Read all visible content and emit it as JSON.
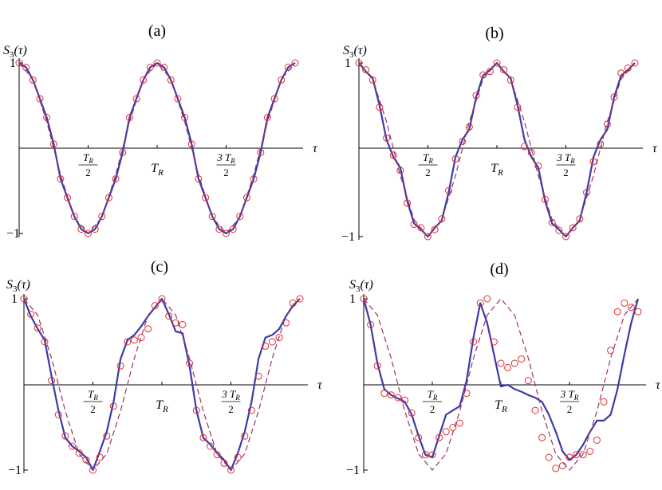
{
  "figure": {
    "x_axis_label": "τ",
    "y_axis_label": "S3(τ)",
    "y_tick_top": "1",
    "y_tick_bottom": "−1",
    "x_ticks": [
      {
        "num": "T",
        "sub": "R",
        "den": "2",
        "kind": "frac",
        "value": 0.5
      },
      {
        "label": "T",
        "sub": "R",
        "kind": "plain",
        "value": 1.0
      },
      {
        "num": "3 T",
        "sub": "R",
        "den": "2",
        "kind": "frac",
        "value": 1.5
      }
    ],
    "colors": {
      "solid": "#3b3ba8",
      "circles": "#e03030",
      "dashed": "#a0306a",
      "axis": "#000000"
    }
  },
  "chart_data": [
    {
      "title": "(a)",
      "type": "line",
      "xlim": [
        0,
        2
      ],
      "ylim": [
        -1,
        1
      ],
      "xlabel": "τ",
      "ylabel": "S3(τ)",
      "series": [
        {
          "kind": "solid",
          "x": [
            0,
            0.05,
            0.1,
            0.15,
            0.2,
            0.25,
            0.3,
            0.35,
            0.4,
            0.45,
            0.5,
            0.55,
            0.6,
            0.65,
            0.7,
            0.75,
            0.8,
            0.85,
            0.9,
            0.95,
            1.0,
            1.05,
            1.1,
            1.15,
            1.2,
            1.25,
            1.3,
            1.35,
            1.4,
            1.45,
            1.5,
            1.55,
            1.6,
            1.65,
            1.7,
            1.75,
            1.8,
            1.85,
            1.9,
            1.95,
            2.0
          ],
          "y": [
            1,
            0.95,
            0.8,
            0.58,
            0.36,
            0.05,
            -0.36,
            -0.58,
            -0.8,
            -0.95,
            -1,
            -0.95,
            -0.8,
            -0.58,
            -0.36,
            -0.05,
            0.36,
            0.58,
            0.8,
            0.95,
            1,
            0.95,
            0.8,
            0.58,
            0.36,
            0.05,
            -0.36,
            -0.58,
            -0.8,
            -0.95,
            -1,
            -0.95,
            -0.8,
            -0.58,
            -0.36,
            -0.05,
            0.36,
            0.58,
            0.8,
            0.95,
            1
          ]
        },
        {
          "kind": "circles",
          "x": [
            0,
            0.05,
            0.1,
            0.15,
            0.2,
            0.25,
            0.3,
            0.35,
            0.4,
            0.45,
            0.5,
            0.55,
            0.6,
            0.65,
            0.7,
            0.75,
            0.8,
            0.85,
            0.9,
            0.95,
            1.0,
            1.05,
            1.1,
            1.15,
            1.2,
            1.25,
            1.3,
            1.35,
            1.4,
            1.45,
            1.5,
            1.55,
            1.6,
            1.65,
            1.7,
            1.75,
            1.8,
            1.85,
            1.9,
            1.95,
            2.0
          ],
          "y": [
            1,
            0.95,
            0.8,
            0.58,
            0.36,
            0.05,
            -0.36,
            -0.58,
            -0.8,
            -0.95,
            -1,
            -0.95,
            -0.8,
            -0.58,
            -0.36,
            -0.05,
            0.36,
            0.58,
            0.8,
            0.95,
            1,
            0.95,
            0.8,
            0.58,
            0.36,
            0.05,
            -0.36,
            -0.58,
            -0.8,
            -0.95,
            -1,
            -0.95,
            -0.8,
            -0.58,
            -0.36,
            -0.05,
            0.36,
            0.58,
            0.8,
            0.95,
            1
          ]
        },
        {
          "kind": "dashed",
          "x": [
            0,
            0.1,
            0.2,
            0.3,
            0.4,
            0.5,
            0.6,
            0.7,
            0.8,
            0.9,
            1.0,
            1.1,
            1.2,
            1.3,
            1.4,
            1.5,
            1.6,
            1.7,
            1.8,
            1.9,
            2.0
          ],
          "y": [
            1,
            0.81,
            0.31,
            -0.31,
            -0.81,
            -1,
            -0.81,
            -0.31,
            0.31,
            0.81,
            1,
            0.81,
            0.31,
            -0.31,
            -0.81,
            -1,
            -0.81,
            -0.31,
            0.31,
            0.81,
            1
          ]
        }
      ]
    },
    {
      "title": "(b)",
      "type": "line",
      "xlim": [
        0,
        2
      ],
      "ylim": [
        -1,
        1
      ],
      "xlabel": "τ",
      "ylabel": "S3(τ)",
      "series": [
        {
          "kind": "solid",
          "x": [
            0,
            0.05,
            0.1,
            0.15,
            0.2,
            0.25,
            0.3,
            0.35,
            0.4,
            0.45,
            0.5,
            0.55,
            0.6,
            0.65,
            0.7,
            0.75,
            0.8,
            0.85,
            0.9,
            0.95,
            1.0,
            1.05,
            1.1,
            1.15,
            1.2,
            1.25,
            1.3,
            1.35,
            1.4,
            1.45,
            1.5,
            1.55,
            1.6,
            1.65,
            1.7,
            1.75,
            1.8,
            1.85,
            1.9,
            1.95,
            2.0
          ],
          "y": [
            1,
            0.9,
            0.82,
            0.5,
            0.1,
            -0.1,
            -0.22,
            -0.6,
            -0.85,
            -0.92,
            -1,
            -0.9,
            -0.82,
            -0.5,
            -0.1,
            0.1,
            0.22,
            0.6,
            0.85,
            0.92,
            1,
            0.9,
            0.82,
            0.5,
            0.1,
            -0.1,
            -0.22,
            -0.6,
            -0.85,
            -0.92,
            -1,
            -0.9,
            -0.82,
            -0.5,
            -0.1,
            0.1,
            0.22,
            0.6,
            0.85,
            0.92,
            1
          ]
        },
        {
          "kind": "circles",
          "x": [
            0,
            0.05,
            0.1,
            0.15,
            0.2,
            0.25,
            0.3,
            0.35,
            0.4,
            0.45,
            0.5,
            0.55,
            0.6,
            0.65,
            0.7,
            0.75,
            0.8,
            0.85,
            0.9,
            0.95,
            1.0,
            1.05,
            1.1,
            1.15,
            1.2,
            1.25,
            1.3,
            1.35,
            1.4,
            1.45,
            1.5,
            1.55,
            1.6,
            1.65,
            1.7,
            1.75,
            1.8,
            1.85,
            1.9,
            1.95,
            2.0
          ],
          "y": [
            1,
            0.92,
            0.8,
            0.48,
            0.12,
            -0.08,
            -0.25,
            -0.62,
            -0.86,
            -0.9,
            -1,
            -0.92,
            -0.8,
            -0.48,
            -0.12,
            0.08,
            0.25,
            0.62,
            0.86,
            0.9,
            1,
            0.92,
            0.8,
            0.48,
            0.02,
            -0.05,
            -0.2,
            -0.58,
            -0.84,
            -0.93,
            -1,
            -0.9,
            -0.8,
            -0.5,
            -0.15,
            0.05,
            0.28,
            0.6,
            0.88,
            0.94,
            1
          ]
        },
        {
          "kind": "dashed",
          "x": [
            0,
            0.1,
            0.2,
            0.3,
            0.4,
            0.5,
            0.6,
            0.7,
            0.8,
            0.9,
            1.0,
            1.1,
            1.2,
            1.3,
            1.4,
            1.5,
            1.6,
            1.7,
            1.8,
            1.9,
            2.0
          ],
          "y": [
            1,
            0.81,
            0.31,
            -0.31,
            -0.81,
            -1,
            -0.81,
            -0.31,
            0.31,
            0.81,
            1,
            0.81,
            0.31,
            -0.31,
            -0.81,
            -1,
            -0.81,
            -0.31,
            0.31,
            0.81,
            1
          ]
        }
      ]
    },
    {
      "title": "(c)",
      "type": "line",
      "xlim": [
        0,
        2
      ],
      "ylim": [
        -1,
        1
      ],
      "xlabel": "τ",
      "ylabel": "S3(τ)",
      "series": [
        {
          "kind": "solid",
          "x": [
            0,
            0.05,
            0.1,
            0.15,
            0.2,
            0.25,
            0.3,
            0.35,
            0.4,
            0.45,
            0.5,
            0.55,
            0.6,
            0.65,
            0.7,
            0.75,
            0.8,
            0.85,
            0.9,
            0.95,
            1.0,
            1.05,
            1.1,
            1.15,
            1.2,
            1.25,
            1.3,
            1.35,
            1.4,
            1.45,
            1.5,
            1.55,
            1.6,
            1.65,
            1.7,
            1.75,
            1.8,
            1.85,
            1.9,
            1.95,
            2.0
          ],
          "y": [
            1,
            0.8,
            0.65,
            0.52,
            0.1,
            -0.3,
            -0.62,
            -0.72,
            -0.78,
            -0.85,
            -1,
            -0.78,
            -0.55,
            -0.2,
            0.3,
            0.52,
            0.58,
            0.68,
            0.8,
            0.9,
            1,
            0.82,
            0.62,
            0.6,
            0.22,
            -0.3,
            -0.62,
            -0.7,
            -0.8,
            -0.88,
            -1,
            -0.8,
            -0.55,
            -0.2,
            0.3,
            0.55,
            0.58,
            0.65,
            0.8,
            0.92,
            1
          ]
        },
        {
          "kind": "circles",
          "x": [
            0,
            0.05,
            0.1,
            0.15,
            0.2,
            0.25,
            0.3,
            0.35,
            0.4,
            0.45,
            0.5,
            0.55,
            0.6,
            0.65,
            0.7,
            0.75,
            0.8,
            0.85,
            0.9,
            0.95,
            1.0,
            1.05,
            1.1,
            1.15,
            1.2,
            1.25,
            1.3,
            1.35,
            1.4,
            1.45,
            1.5,
            1.55,
            1.6,
            1.65,
            1.7,
            1.75,
            1.8,
            1.85,
            1.9,
            1.95,
            2.0
          ],
          "y": [
            1,
            0.82,
            0.66,
            0.5,
            0.05,
            -0.35,
            -0.6,
            -0.72,
            -0.8,
            -0.88,
            -1,
            -0.85,
            -0.6,
            -0.25,
            0.22,
            0.5,
            0.52,
            0.55,
            0.65,
            0.92,
            1,
            0.8,
            0.72,
            0.7,
            0.25,
            -0.3,
            -0.62,
            -0.72,
            -0.82,
            -0.92,
            -1,
            -0.85,
            -0.6,
            -0.3,
            0.1,
            0.45,
            0.5,
            0.55,
            0.72,
            0.95,
            1
          ]
        },
        {
          "kind": "dashed",
          "x": [
            0,
            0.1,
            0.2,
            0.3,
            0.4,
            0.5,
            0.6,
            0.7,
            0.8,
            0.9,
            1.0,
            1.1,
            1.2,
            1.3,
            1.4,
            1.5,
            1.6,
            1.7,
            1.8,
            1.9,
            2.0
          ],
          "y": [
            1,
            0.81,
            0.31,
            -0.31,
            -0.81,
            -1,
            -0.81,
            -0.31,
            0.31,
            0.81,
            1,
            0.81,
            0.31,
            -0.31,
            -0.81,
            -1,
            -0.81,
            -0.31,
            0.31,
            0.81,
            1
          ]
        }
      ]
    },
    {
      "title": "(d)",
      "type": "line",
      "xlim": [
        0,
        2
      ],
      "ylim": [
        -1,
        1
      ],
      "xlabel": "τ",
      "ylabel": "S3(τ)",
      "series": [
        {
          "kind": "solid",
          "x": [
            0,
            0.05,
            0.1,
            0.15,
            0.2,
            0.25,
            0.3,
            0.35,
            0.4,
            0.45,
            0.5,
            0.55,
            0.6,
            0.65,
            0.7,
            0.75,
            0.8,
            0.85,
            0.9,
            0.95,
            1.0,
            1.05,
            1.1,
            1.15,
            1.2,
            1.25,
            1.3,
            1.35,
            1.4,
            1.45,
            1.5,
            1.55,
            1.6,
            1.65,
            1.7,
            1.75,
            1.8,
            1.85,
            1.9,
            1.95,
            2.0
          ],
          "y": [
            1,
            0.7,
            0.25,
            -0.05,
            -0.12,
            -0.16,
            -0.2,
            -0.35,
            -0.6,
            -0.82,
            -0.85,
            -0.6,
            -0.35,
            -0.3,
            -0.25,
            0.05,
            0.55,
            0.95,
            0.72,
            0.35,
            -0.02,
            0.0,
            -0.05,
            -0.08,
            -0.12,
            -0.15,
            -0.2,
            -0.35,
            -0.55,
            -0.78,
            -0.88,
            -0.82,
            -0.7,
            -0.55,
            -0.42,
            -0.42,
            -0.35,
            -0.05,
            0.35,
            0.72,
            1.0
          ]
        },
        {
          "kind": "circles",
          "x": [
            0,
            0.05,
            0.1,
            0.15,
            0.2,
            0.25,
            0.3,
            0.35,
            0.4,
            0.45,
            0.5,
            0.55,
            0.6,
            0.65,
            0.7,
            0.75,
            0.8,
            0.85,
            0.9,
            0.95,
            1.0,
            1.05,
            1.1,
            1.15,
            1.2,
            1.25,
            1.3,
            1.35,
            1.4,
            1.45,
            1.5,
            1.55,
            1.6,
            1.65,
            1.7,
            1.75,
            1.8,
            1.85,
            1.9,
            1.95,
            2.0
          ],
          "y": [
            1,
            0.7,
            0.22,
            -0.1,
            -0.12,
            -0.15,
            -0.18,
            -0.33,
            -0.62,
            -0.82,
            -0.82,
            -0.62,
            -0.55,
            -0.5,
            -0.45,
            -0.1,
            0.5,
            0.95,
            1.0,
            0.5,
            0.25,
            0.2,
            0.25,
            0.3,
            0.05,
            -0.3,
            -0.62,
            -0.85,
            -0.98,
            -0.95,
            -0.85,
            -0.82,
            -0.82,
            -0.78,
            -0.65,
            -0.2,
            0.4,
            0.85,
            0.95,
            0.9,
            0.85
          ]
        },
        {
          "kind": "dashed",
          "x": [
            0,
            0.1,
            0.2,
            0.3,
            0.4,
            0.5,
            0.6,
            0.7,
            0.8,
            0.9,
            1.0,
            1.1,
            1.2,
            1.3,
            1.4,
            1.5,
            1.6,
            1.7,
            1.8,
            1.9,
            2.0
          ],
          "y": [
            1,
            0.81,
            0.31,
            -0.31,
            -0.81,
            -1,
            -0.81,
            -0.31,
            0.31,
            0.81,
            1,
            0.81,
            0.31,
            -0.31,
            -0.81,
            -1,
            -0.81,
            -0.31,
            0.31,
            0.81,
            1
          ]
        }
      ]
    }
  ]
}
